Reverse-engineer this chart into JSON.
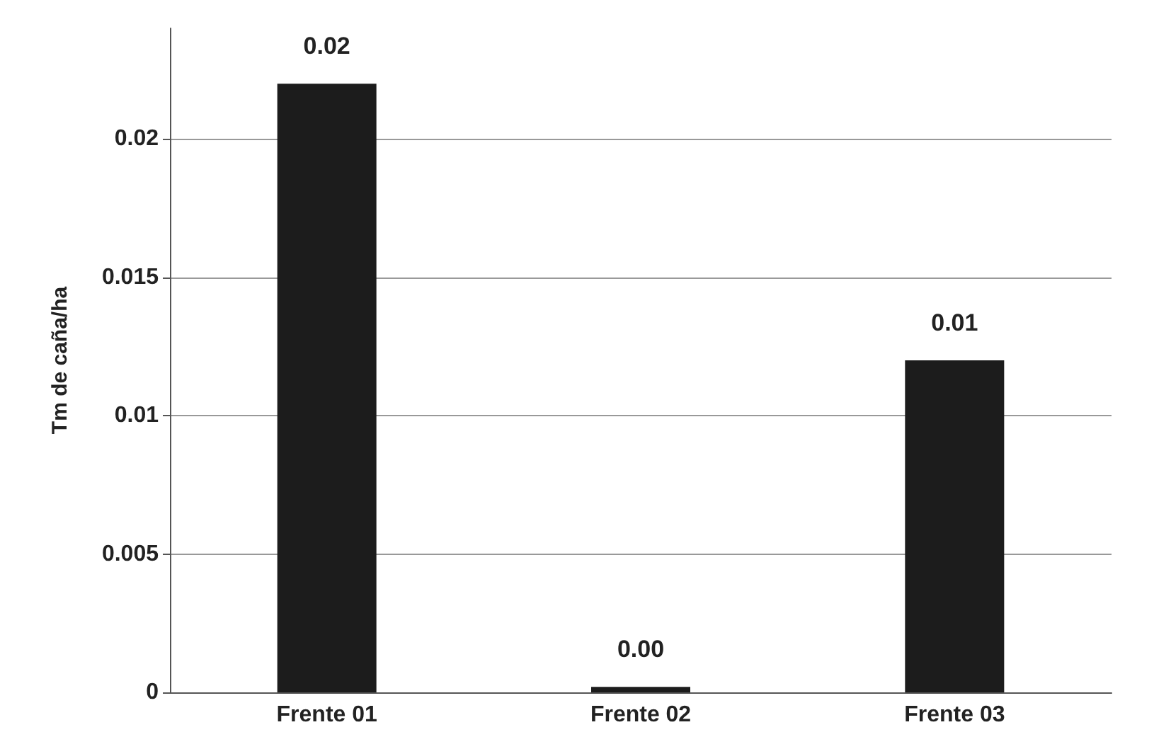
{
  "chart_data": {
    "type": "bar",
    "ylabel": "Tm de caña/ha",
    "categories": [
      "Frente 01",
      "Frente 02",
      "Frente 03"
    ],
    "values": [
      0.022,
      0.0002,
      0.012
    ],
    "value_labels": [
      "0.02",
      "0.00",
      "0.01"
    ],
    "color": "#1c1c1c",
    "ylim": [
      0,
      0.024
    ],
    "yticks": [
      0,
      0.005,
      0.01,
      0.015,
      0.02
    ],
    "grid": "y"
  }
}
